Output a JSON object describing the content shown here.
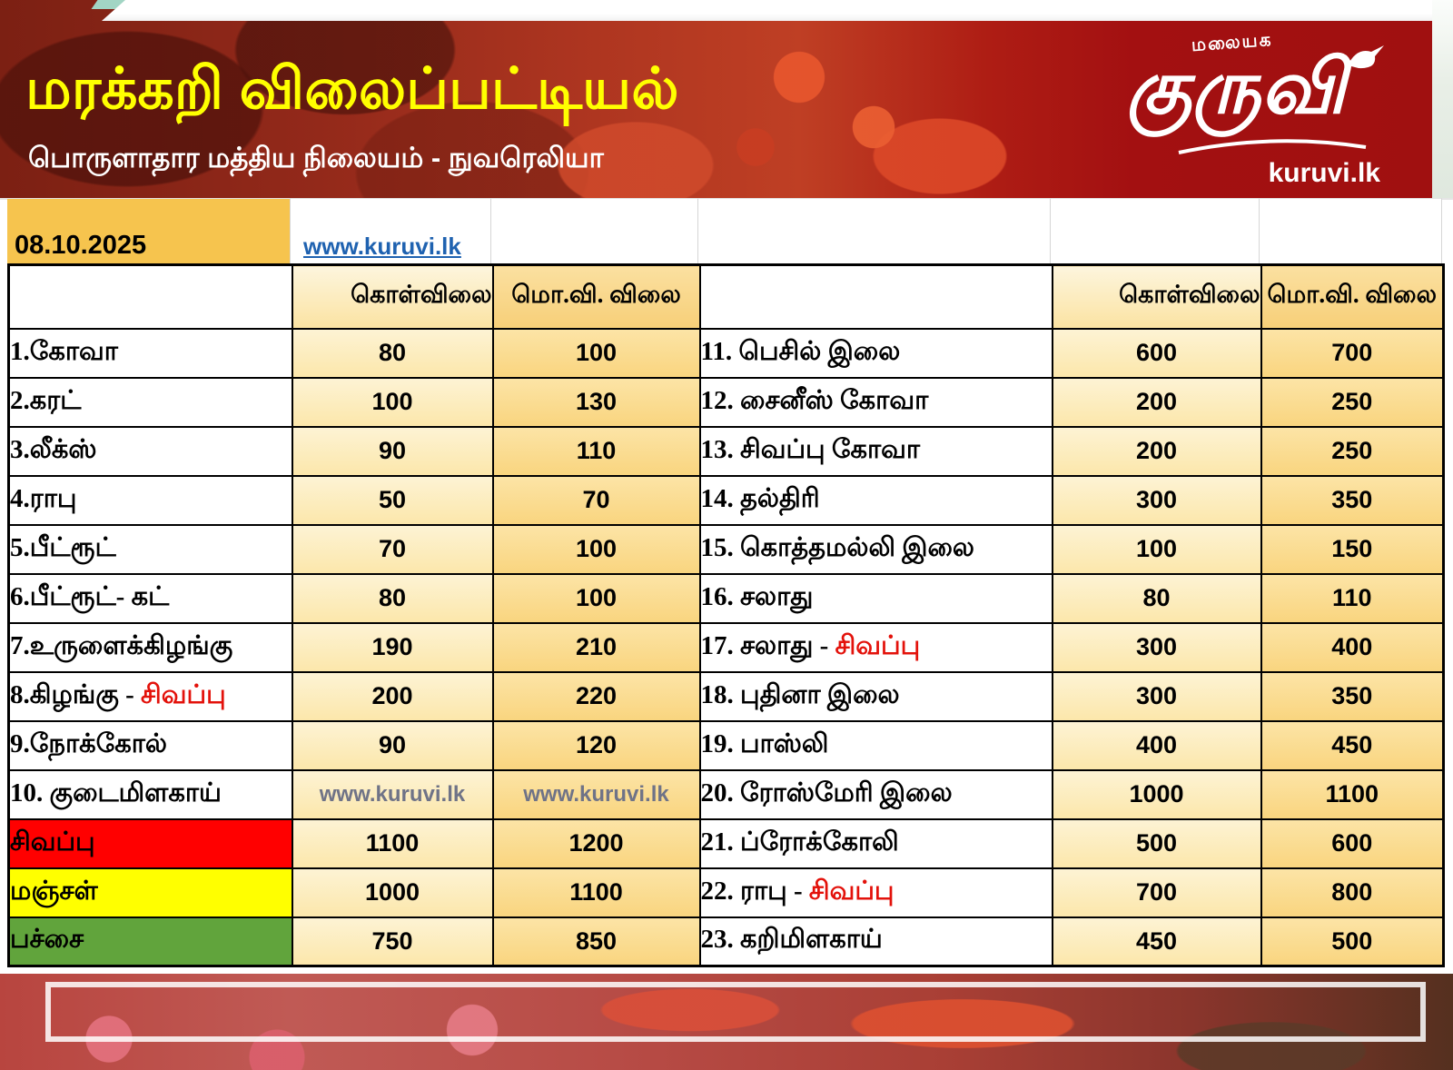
{
  "header": {
    "title": "மரக்கறி விலைப்பட்டியல்",
    "subtitle": "பொருளாதார மத்திய நிலையம் - நுவரெலியா",
    "logo_top": "மலையக",
    "logo_main": "குருவி",
    "logo_domain": "kuruvi.lk"
  },
  "meta": {
    "date": "08.10.2025",
    "link": "www.kuruvi.lk"
  },
  "table": {
    "buy_header": "கொள்விலை",
    "retail_header": "மொ.வி. விலை",
    "left_rows": [
      {
        "label": "1.கோவா",
        "buy": "80",
        "retail": "100"
      },
      {
        "label": "2.கரட்",
        "buy": "100",
        "retail": "130"
      },
      {
        "label": "3.லீக்ஸ்",
        "buy": "90",
        "retail": "110"
      },
      {
        "label": "4.ராபு",
        "buy": "50",
        "retail": "70"
      },
      {
        "label": "5.பீட்ரூட்",
        "buy": "70",
        "retail": "100"
      },
      {
        "label": "6.பீட்ரூட்- கட்",
        "buy": "80",
        "retail": "100"
      },
      {
        "label": "7.உருளைக்கிழங்கு",
        "buy": "190",
        "retail": "210"
      },
      {
        "label": "8.கிழங்கு - ",
        "red": "சிவப்பு",
        "buy": "200",
        "retail": "220"
      },
      {
        "label": "9.நோக்கோல்",
        "buy": "90",
        "retail": "120"
      },
      {
        "label": "10. குடைமிளகாய்",
        "buy": "www.kuruvi.lk",
        "retail": "www.kuruvi.lk",
        "price_link": true
      },
      {
        "label": "சிவப்பு",
        "bg": "#ff0000",
        "buy": "1100",
        "retail": "1200"
      },
      {
        "label": "மஞ்சள்",
        "bg": "#ffff00",
        "buy": "1000",
        "retail": "1100"
      },
      {
        "label": "பச்சை",
        "bg": "#61a43c",
        "buy": "750",
        "retail": "850"
      }
    ],
    "right_rows": [
      {
        "label": "11. பெசில் இலை",
        "buy": "600",
        "retail": "700"
      },
      {
        "label": "12. சைனீஸ் கோவா",
        "buy": "200",
        "retail": "250"
      },
      {
        "label": "13. சிவப்பு கோவா",
        "buy": "200",
        "retail": "250"
      },
      {
        "label": "14. தல்திரி",
        "buy": "300",
        "retail": "350"
      },
      {
        "label": "15. கொத்தமல்லி இலை",
        "buy": "100",
        "retail": "150"
      },
      {
        "label": "16. சலாது",
        "buy": "80",
        "retail": "110"
      },
      {
        "label": "17. சலாது - ",
        "red": "சிவப்பு",
        "buy": "300",
        "retail": "400"
      },
      {
        "label": "18. புதினா இலை",
        "buy": "300",
        "retail": "350"
      },
      {
        "label": "19. பாஸ்லி",
        "buy": "400",
        "retail": "450"
      },
      {
        "label": "20. ரோஸ்மேரி இலை",
        "buy": "1000",
        "retail": "1100"
      },
      {
        "label": "21. ப்ரோக்கோலி",
        "buy": "500",
        "retail": "600"
      },
      {
        "label": "22. ராபு - ",
        "red": "சிவப்பு",
        "buy": "700",
        "retail": "800"
      },
      {
        "label": "23. கறிமிளகாய்",
        "buy": "450",
        "retail": "500"
      }
    ]
  },
  "colors": {
    "banner_red": "#a01010",
    "title_yellow": "#ffff00",
    "date_cell_bg": "#f6c44e",
    "buy_cell_bg": "#fcedbd",
    "retail_cell_bg": "#fadc92",
    "red_row_bg": "#ff0000",
    "yellow_row_bg": "#ffff00",
    "green_row_bg": "#61a43c",
    "red_word": "#e3120b",
    "link_blue": "#1f62b0",
    "price_link_gray": "#6f7387"
  }
}
